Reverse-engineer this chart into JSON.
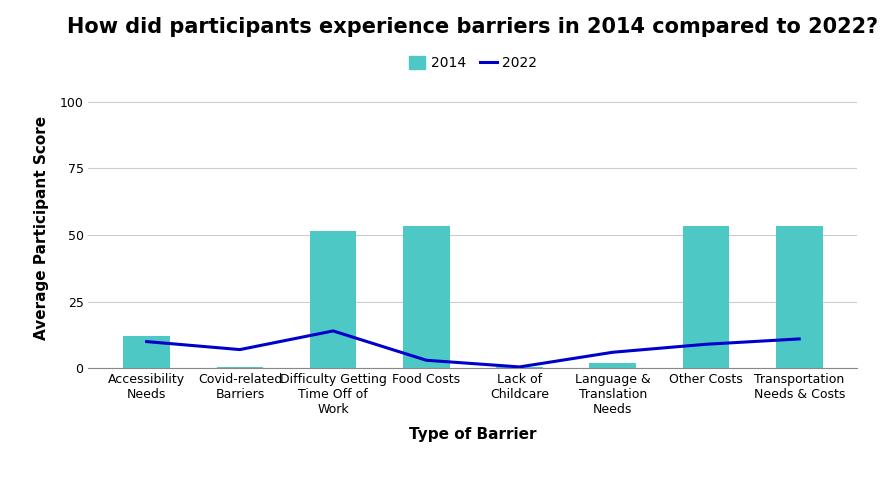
{
  "title": "How did participants experience barriers in 2014 compared to 2022?",
  "xlabel": "Type of Barrier",
  "ylabel": "Average Participant Score",
  "categories": [
    "Accessibility\nNeeds",
    "Covid-related\nBarriers",
    "Difficulty Getting\nTime Off of\nWork",
    "Food Costs",
    "Lack of\nChildcare",
    "Language &\nTranslation\nNeeds",
    "Other Costs",
    "Transportation\nNeeds & Costs"
  ],
  "values_2014": [
    12,
    0.5,
    51.5,
    53.5,
    0.5,
    2,
    53.5,
    53.5
  ],
  "values_2022": [
    10,
    7,
    14,
    3,
    0.5,
    6,
    9,
    11
  ],
  "bar_color": "#4DC8C4",
  "line_color": "#0000CC",
  "background_color": "#FFFFFF",
  "ylim": [
    0,
    105
  ],
  "yticks": [
    0,
    25,
    50,
    75,
    100
  ],
  "title_fontsize": 15,
  "axis_label_fontsize": 11,
  "tick_fontsize": 9,
  "legend_fontsize": 10,
  "bar_width": 0.5
}
